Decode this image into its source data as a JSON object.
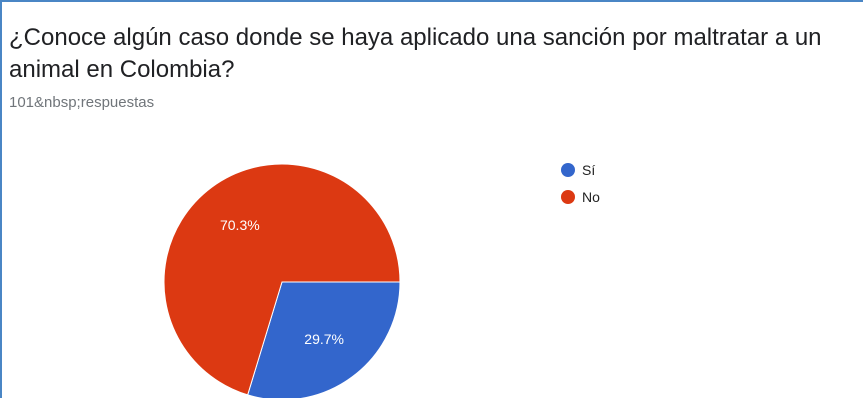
{
  "question": {
    "title": "¿Conoce algún caso donde se haya aplicado una sanción por maltratar a un animal en Colombia?",
    "response_count": "101&nbsp;respuestas"
  },
  "chart_data": {
    "type": "pie",
    "categories": [
      "Sí",
      "No"
    ],
    "values": [
      29.7,
      70.3
    ],
    "labels": [
      "29.7%",
      "70.3%"
    ],
    "colors": [
      "#3366cc",
      "#dc3912"
    ],
    "legend_position": "right"
  }
}
